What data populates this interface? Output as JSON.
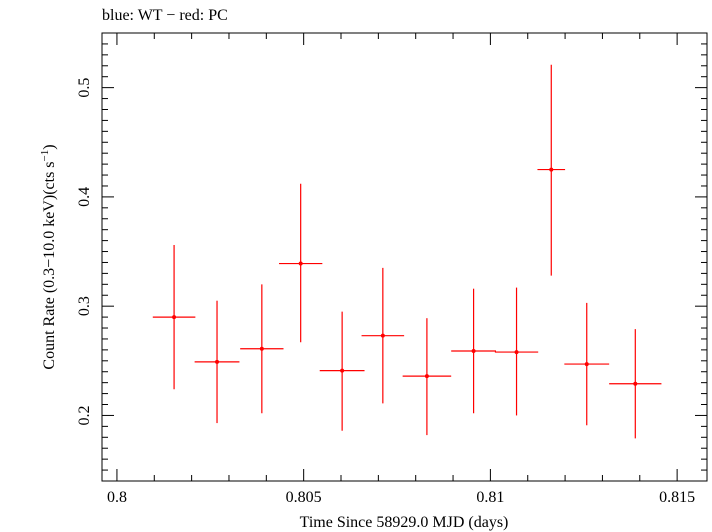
{
  "chart_data": {
    "type": "scatter",
    "title": "blue: WT − red: PC",
    "xlabel": "Time Since 58929.0 MJD (days)",
    "ylabel_main": "Count Rate (0.3−10.0 keV)(cts s",
    "ylabel_sup": "−1",
    "ylabel_close": ")",
    "xlim": [
      0.7996,
      0.8158
    ],
    "ylim": [
      0.14,
      0.55
    ],
    "x_ticks": [
      {
        "value": 0.8,
        "label": "0.8"
      },
      {
        "value": 0.805,
        "label": "0.805"
      },
      {
        "value": 0.81,
        "label": "0.81"
      },
      {
        "value": 0.815,
        "label": "0.815"
      }
    ],
    "y_ticks": [
      {
        "value": 0.2,
        "label": "0.2"
      },
      {
        "value": 0.3,
        "label": "0.3"
      },
      {
        "value": 0.4,
        "label": "0.4"
      },
      {
        "value": 0.5,
        "label": "0.5"
      }
    ],
    "grid": false,
    "series": [
      {
        "color": "#ff0000",
        "points": [
          {
            "x": 0.80153,
            "xerr": 0.00057,
            "y": 0.29,
            "ylo": 0.224,
            "yhi": 0.356
          },
          {
            "x": 0.80268,
            "xerr": 0.0006,
            "y": 0.249,
            "ylo": 0.193,
            "yhi": 0.305
          },
          {
            "x": 0.80388,
            "xerr": 0.00058,
            "y": 0.261,
            "ylo": 0.202,
            "yhi": 0.32
          },
          {
            "x": 0.80492,
            "xerr": 0.00058,
            "y": 0.339,
            "ylo": 0.267,
            "yhi": 0.412
          },
          {
            "x": 0.80603,
            "xerr": 0.0006,
            "y": 0.241,
            "ylo": 0.186,
            "yhi": 0.295
          },
          {
            "x": 0.80712,
            "xerr": 0.00057,
            "y": 0.273,
            "ylo": 0.211,
            "yhi": 0.335
          },
          {
            "x": 0.8083,
            "xerr": 0.00065,
            "y": 0.236,
            "ylo": 0.182,
            "yhi": 0.289
          },
          {
            "x": 0.80955,
            "xerr": 0.0006,
            "y": 0.259,
            "ylo": 0.202,
            "yhi": 0.316
          },
          {
            "x": 0.8107,
            "xerr": 0.00058,
            "y": 0.258,
            "ylo": 0.2,
            "yhi": 0.317
          },
          {
            "x": 0.81163,
            "xerr": 0.00037,
            "y": 0.425,
            "ylo": 0.328,
            "yhi": 0.521
          },
          {
            "x": 0.81258,
            "xerr": 0.0006,
            "y": 0.247,
            "ylo": 0.191,
            "yhi": 0.303
          },
          {
            "x": 0.81388,
            "xerr": 0.0007,
            "y": 0.229,
            "ylo": 0.179,
            "yhi": 0.279
          }
        ]
      }
    ]
  }
}
